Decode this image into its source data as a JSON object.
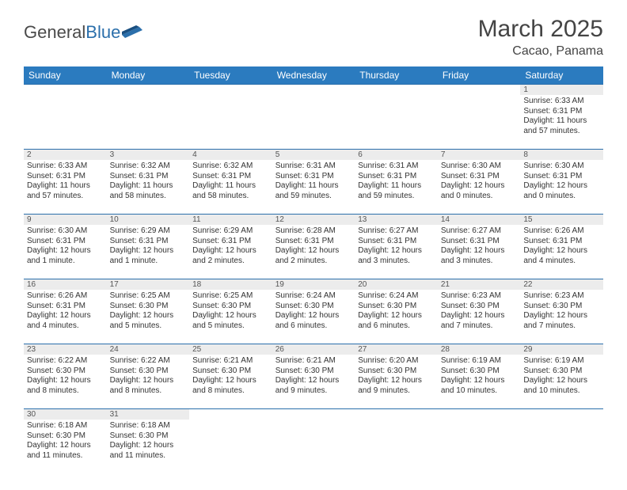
{
  "header": {
    "logo_text_1": "General",
    "logo_text_2": "Blue",
    "title": "March 2025",
    "location": "Cacao, Panama"
  },
  "colors": {
    "header_bg": "#2b7bbf",
    "header_text": "#ffffff",
    "cell_border": "#2b6fab",
    "daynum_bg": "#ececec",
    "text": "#333333"
  },
  "weekdays": [
    "Sunday",
    "Monday",
    "Tuesday",
    "Wednesday",
    "Thursday",
    "Friday",
    "Saturday"
  ],
  "weeks": [
    [
      {
        "blank": true
      },
      {
        "blank": true
      },
      {
        "blank": true
      },
      {
        "blank": true
      },
      {
        "blank": true
      },
      {
        "blank": true
      },
      {
        "day": "1",
        "sunrise": "Sunrise: 6:33 AM",
        "sunset": "Sunset: 6:31 PM",
        "daylight": "Daylight: 11 hours and 57 minutes."
      }
    ],
    [
      {
        "day": "2",
        "sunrise": "Sunrise: 6:33 AM",
        "sunset": "Sunset: 6:31 PM",
        "daylight": "Daylight: 11 hours and 57 minutes."
      },
      {
        "day": "3",
        "sunrise": "Sunrise: 6:32 AM",
        "sunset": "Sunset: 6:31 PM",
        "daylight": "Daylight: 11 hours and 58 minutes."
      },
      {
        "day": "4",
        "sunrise": "Sunrise: 6:32 AM",
        "sunset": "Sunset: 6:31 PM",
        "daylight": "Daylight: 11 hours and 58 minutes."
      },
      {
        "day": "5",
        "sunrise": "Sunrise: 6:31 AM",
        "sunset": "Sunset: 6:31 PM",
        "daylight": "Daylight: 11 hours and 59 minutes."
      },
      {
        "day": "6",
        "sunrise": "Sunrise: 6:31 AM",
        "sunset": "Sunset: 6:31 PM",
        "daylight": "Daylight: 11 hours and 59 minutes."
      },
      {
        "day": "7",
        "sunrise": "Sunrise: 6:30 AM",
        "sunset": "Sunset: 6:31 PM",
        "daylight": "Daylight: 12 hours and 0 minutes."
      },
      {
        "day": "8",
        "sunrise": "Sunrise: 6:30 AM",
        "sunset": "Sunset: 6:31 PM",
        "daylight": "Daylight: 12 hours and 0 minutes."
      }
    ],
    [
      {
        "day": "9",
        "sunrise": "Sunrise: 6:30 AM",
        "sunset": "Sunset: 6:31 PM",
        "daylight": "Daylight: 12 hours and 1 minute."
      },
      {
        "day": "10",
        "sunrise": "Sunrise: 6:29 AM",
        "sunset": "Sunset: 6:31 PM",
        "daylight": "Daylight: 12 hours and 1 minute."
      },
      {
        "day": "11",
        "sunrise": "Sunrise: 6:29 AM",
        "sunset": "Sunset: 6:31 PM",
        "daylight": "Daylight: 12 hours and 2 minutes."
      },
      {
        "day": "12",
        "sunrise": "Sunrise: 6:28 AM",
        "sunset": "Sunset: 6:31 PM",
        "daylight": "Daylight: 12 hours and 2 minutes."
      },
      {
        "day": "13",
        "sunrise": "Sunrise: 6:27 AM",
        "sunset": "Sunset: 6:31 PM",
        "daylight": "Daylight: 12 hours and 3 minutes."
      },
      {
        "day": "14",
        "sunrise": "Sunrise: 6:27 AM",
        "sunset": "Sunset: 6:31 PM",
        "daylight": "Daylight: 12 hours and 3 minutes."
      },
      {
        "day": "15",
        "sunrise": "Sunrise: 6:26 AM",
        "sunset": "Sunset: 6:31 PM",
        "daylight": "Daylight: 12 hours and 4 minutes."
      }
    ],
    [
      {
        "day": "16",
        "sunrise": "Sunrise: 6:26 AM",
        "sunset": "Sunset: 6:31 PM",
        "daylight": "Daylight: 12 hours and 4 minutes."
      },
      {
        "day": "17",
        "sunrise": "Sunrise: 6:25 AM",
        "sunset": "Sunset: 6:30 PM",
        "daylight": "Daylight: 12 hours and 5 minutes."
      },
      {
        "day": "18",
        "sunrise": "Sunrise: 6:25 AM",
        "sunset": "Sunset: 6:30 PM",
        "daylight": "Daylight: 12 hours and 5 minutes."
      },
      {
        "day": "19",
        "sunrise": "Sunrise: 6:24 AM",
        "sunset": "Sunset: 6:30 PM",
        "daylight": "Daylight: 12 hours and 6 minutes."
      },
      {
        "day": "20",
        "sunrise": "Sunrise: 6:24 AM",
        "sunset": "Sunset: 6:30 PM",
        "daylight": "Daylight: 12 hours and 6 minutes."
      },
      {
        "day": "21",
        "sunrise": "Sunrise: 6:23 AM",
        "sunset": "Sunset: 6:30 PM",
        "daylight": "Daylight: 12 hours and 7 minutes."
      },
      {
        "day": "22",
        "sunrise": "Sunrise: 6:23 AM",
        "sunset": "Sunset: 6:30 PM",
        "daylight": "Daylight: 12 hours and 7 minutes."
      }
    ],
    [
      {
        "day": "23",
        "sunrise": "Sunrise: 6:22 AM",
        "sunset": "Sunset: 6:30 PM",
        "daylight": "Daylight: 12 hours and 8 minutes."
      },
      {
        "day": "24",
        "sunrise": "Sunrise: 6:22 AM",
        "sunset": "Sunset: 6:30 PM",
        "daylight": "Daylight: 12 hours and 8 minutes."
      },
      {
        "day": "25",
        "sunrise": "Sunrise: 6:21 AM",
        "sunset": "Sunset: 6:30 PM",
        "daylight": "Daylight: 12 hours and 8 minutes."
      },
      {
        "day": "26",
        "sunrise": "Sunrise: 6:21 AM",
        "sunset": "Sunset: 6:30 PM",
        "daylight": "Daylight: 12 hours and 9 minutes."
      },
      {
        "day": "27",
        "sunrise": "Sunrise: 6:20 AM",
        "sunset": "Sunset: 6:30 PM",
        "daylight": "Daylight: 12 hours and 9 minutes."
      },
      {
        "day": "28",
        "sunrise": "Sunrise: 6:19 AM",
        "sunset": "Sunset: 6:30 PM",
        "daylight": "Daylight: 12 hours and 10 minutes."
      },
      {
        "day": "29",
        "sunrise": "Sunrise: 6:19 AM",
        "sunset": "Sunset: 6:30 PM",
        "daylight": "Daylight: 12 hours and 10 minutes."
      }
    ],
    [
      {
        "day": "30",
        "sunrise": "Sunrise: 6:18 AM",
        "sunset": "Sunset: 6:30 PM",
        "daylight": "Daylight: 12 hours and 11 minutes."
      },
      {
        "day": "31",
        "sunrise": "Sunrise: 6:18 AM",
        "sunset": "Sunset: 6:30 PM",
        "daylight": "Daylight: 12 hours and 11 minutes."
      },
      {
        "blank": true
      },
      {
        "blank": true
      },
      {
        "blank": true
      },
      {
        "blank": true
      },
      {
        "blank": true
      }
    ]
  ]
}
